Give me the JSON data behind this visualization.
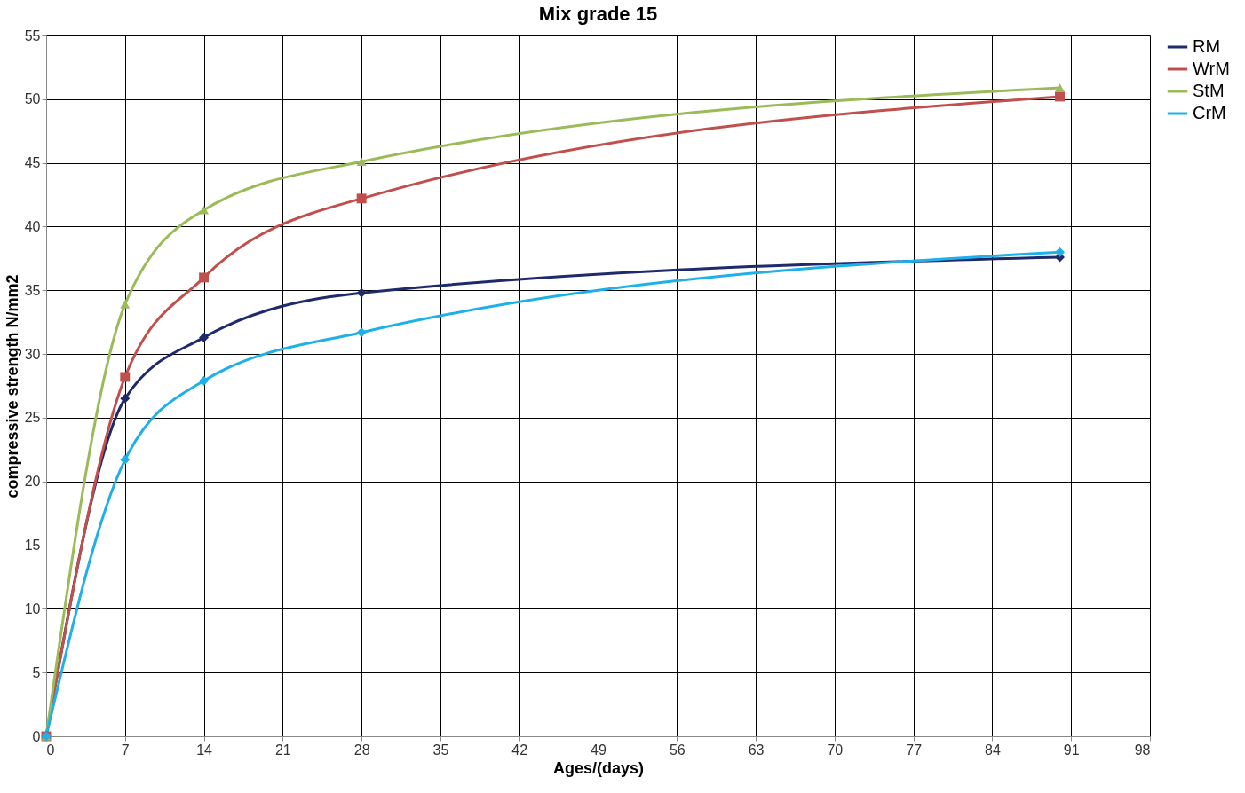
{
  "chart_data": {
    "type": "line",
    "title": "Mix grade 15",
    "xlabel": "Ages/(days)",
    "ylabel": "compressive strength N/mm2",
    "x": [
      0,
      7,
      14,
      28,
      90
    ],
    "series": [
      {
        "name": "RM",
        "color": "#1f2a6b",
        "marker": "diamond",
        "values": [
          0,
          26.5,
          31.3,
          34.8,
          37.6
        ]
      },
      {
        "name": "WrM",
        "color": "#c0504d",
        "marker": "square",
        "values": [
          0,
          28.2,
          36.0,
          42.2,
          50.2
        ]
      },
      {
        "name": "StM",
        "color": "#9bbb59",
        "marker": "triangle",
        "values": [
          0,
          33.9,
          41.3,
          45.1,
          50.9
        ]
      },
      {
        "name": "CrM",
        "color": "#1fb0e8",
        "marker": "diamond",
        "values": [
          0,
          21.7,
          27.9,
          31.7,
          38.0
        ]
      }
    ],
    "xlim": [
      0,
      98
    ],
    "xticks": [
      0,
      7,
      14,
      21,
      28,
      35,
      42,
      49,
      56,
      63,
      70,
      77,
      84,
      91,
      98
    ],
    "ylim": [
      0,
      55
    ],
    "yticks": [
      0,
      5,
      10,
      15,
      20,
      25,
      30,
      35,
      40,
      45,
      50,
      55
    ],
    "grid": true,
    "legend": "right",
    "line_style": "solid"
  }
}
